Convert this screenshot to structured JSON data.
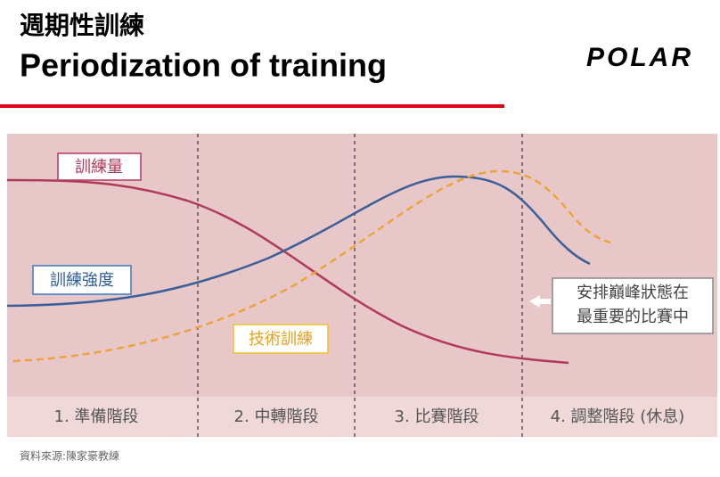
{
  "header": {
    "title_zh": "週期性訓練",
    "title_en": "Periodization of training",
    "logo": "POLAR"
  },
  "curves": [
    {
      "label": "訓練量"
    },
    {
      "label": "訓練強度"
    },
    {
      "label": "技術訓練"
    }
  ],
  "phases": [
    "1. 準備階段",
    "2. 中轉階段",
    "3. 比賽階段",
    "4. 調整階段 (休息)"
  ],
  "note": {
    "lines": [
      "安排巔峰狀態在",
      "最重要的比賽中"
    ]
  },
  "source": "資料來源:陳家豪教練"
}
